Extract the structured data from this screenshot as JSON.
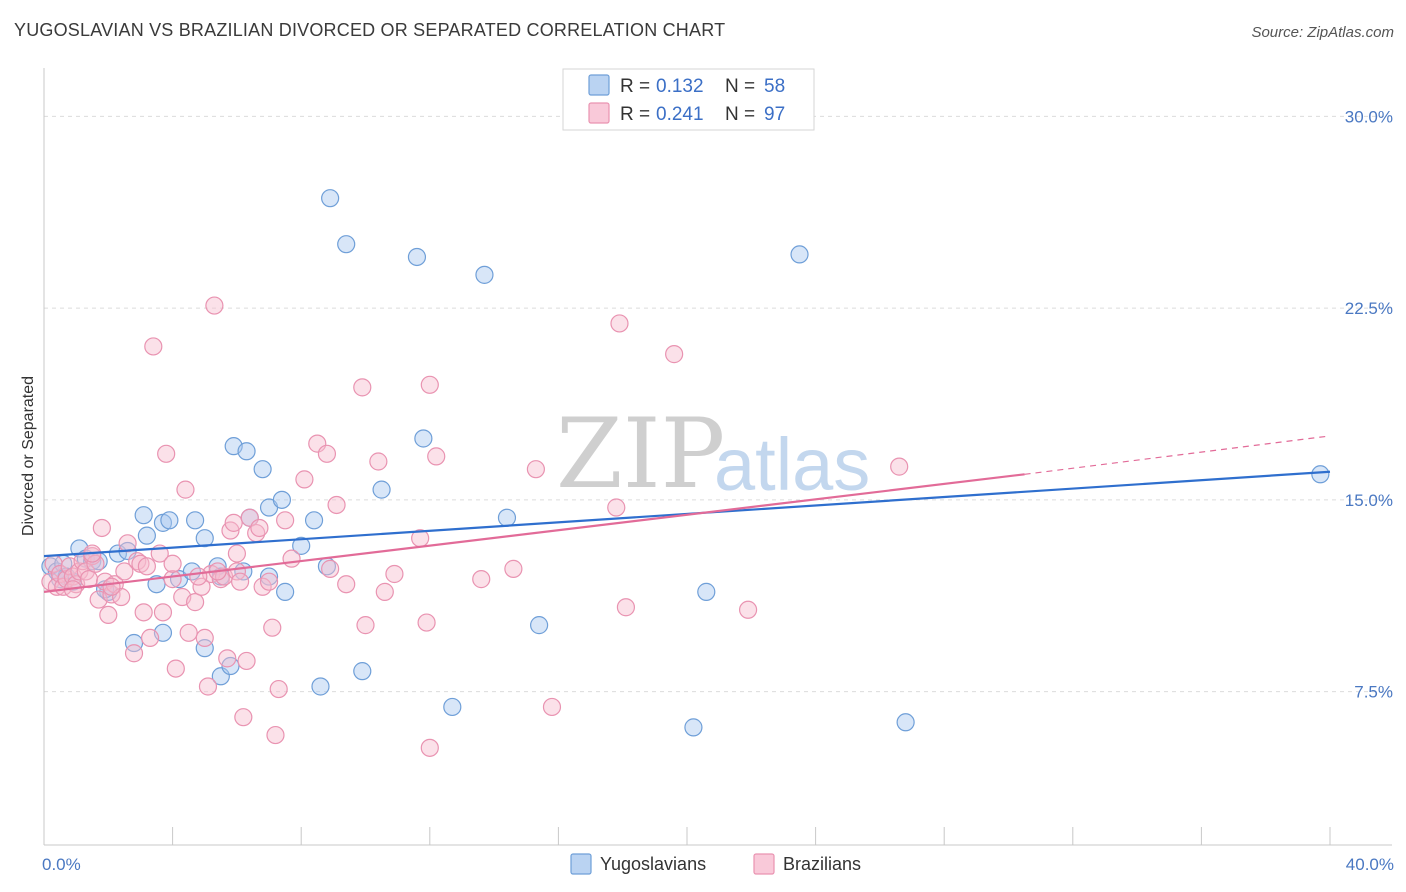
{
  "title": "YUGOSLAVIAN VS BRAZILIAN DIVORCED OR SEPARATED CORRELATION CHART",
  "source": "Source: ZipAtlas.com",
  "watermark": {
    "zip": "ZIP",
    "atlas": "atlas"
  },
  "legend": {
    "r_label": "R =",
    "n_label": "N =",
    "rows": [
      {
        "r": "0.132",
        "n": "58",
        "color": "#a9c8ef",
        "stroke": "#6f9fd8"
      },
      {
        "r": "0.241",
        "n": "97",
        "color": "#f7bccf",
        "stroke": "#e993b1"
      }
    ]
  },
  "bottom_legend": [
    "Yugoslavians",
    "Brazilians"
  ],
  "chart_data": {
    "type": "scatter",
    "xlabel": "",
    "ylabel": "Divorced or Separated",
    "xlim": [
      0,
      40
    ],
    "ylim": [
      1.5,
      31.5
    ],
    "x_tick_labels": [
      {
        "value": 0,
        "label": "0.0%"
      },
      {
        "value": 40,
        "label": "40.0%"
      }
    ],
    "y_tick_labels": [
      {
        "value": 7.5,
        "label": "7.5%"
      },
      {
        "value": 15.0,
        "label": "15.0%"
      },
      {
        "value": 22.5,
        "label": "22.5%"
      },
      {
        "value": 30.0,
        "label": "30.0%"
      }
    ],
    "series": [
      {
        "name": "Yugoslavians",
        "color": "#a9c8ef",
        "stroke": "#6f9fd8",
        "line_color": "#2f6fce",
        "trend": {
          "x0": 0,
          "y0": 12.8,
          "x1": 40,
          "y1": 16.1
        },
        "points": [
          [
            0.2,
            12.4
          ],
          [
            0.4,
            12.2
          ],
          [
            0.6,
            12.5
          ],
          [
            0.7,
            12.0
          ],
          [
            0.9,
            11.8
          ],
          [
            1.1,
            13.1
          ],
          [
            1.3,
            12.7
          ],
          [
            1.5,
            12.6
          ],
          [
            1.7,
            12.6
          ],
          [
            2.0,
            11.4
          ],
          [
            2.3,
            12.9
          ],
          [
            2.6,
            13.0
          ],
          [
            3.1,
            14.4
          ],
          [
            3.2,
            13.6
          ],
          [
            3.5,
            11.7
          ],
          [
            3.7,
            14.1
          ],
          [
            3.9,
            14.2
          ],
          [
            4.2,
            11.9
          ],
          [
            4.6,
            12.2
          ],
          [
            4.7,
            14.2
          ],
          [
            5.0,
            13.5
          ],
          [
            5.4,
            12.4
          ],
          [
            5.5,
            12.0
          ],
          [
            5.9,
            17.1
          ],
          [
            6.2,
            12.2
          ],
          [
            6.3,
            16.9
          ],
          [
            6.4,
            14.3
          ],
          [
            6.8,
            16.2
          ],
          [
            7.0,
            14.7
          ],
          [
            7.0,
            12.0
          ],
          [
            7.4,
            15.0
          ],
          [
            7.5,
            11.4
          ],
          [
            8.0,
            13.2
          ],
          [
            8.4,
            14.2
          ],
          [
            8.8,
            12.4
          ],
          [
            8.9,
            26.8
          ],
          [
            9.4,
            25.0
          ],
          [
            9.9,
            8.3
          ],
          [
            10.5,
            15.4
          ],
          [
            11.6,
            24.5
          ],
          [
            11.8,
            17.4
          ],
          [
            12.7,
            6.9
          ],
          [
            13.7,
            23.8
          ],
          [
            14.4,
            14.3
          ],
          [
            15.4,
            10.1
          ],
          [
            20.2,
            6.1
          ],
          [
            20.6,
            11.4
          ],
          [
            23.5,
            24.6
          ],
          [
            26.8,
            6.3
          ],
          [
            39.7,
            16.0
          ],
          [
            3.7,
            9.8
          ],
          [
            5.0,
            9.2
          ],
          [
            2.8,
            9.4
          ],
          [
            5.5,
            8.1
          ],
          [
            5.8,
            8.5
          ],
          [
            8.6,
            7.7
          ],
          [
            1.9,
            11.5
          ],
          [
            0.5,
            11.9
          ]
        ]
      },
      {
        "name": "Brazilians",
        "color": "#f7bccf",
        "stroke": "#e993b1",
        "line_color": "#e26b98",
        "trend": {
          "x0": 0,
          "y0": 11.4,
          "x1": 30.5,
          "y1": 16.0
        },
        "trend_dash": {
          "x0": 30.5,
          "y0": 16.0,
          "x1": 40,
          "y1": 17.5
        },
        "points": [
          [
            0.2,
            11.8
          ],
          [
            0.3,
            12.5
          ],
          [
            0.4,
            11.6
          ],
          [
            0.5,
            12.1
          ],
          [
            0.6,
            11.6
          ],
          [
            0.7,
            11.9
          ],
          [
            0.8,
            12.4
          ],
          [
            0.9,
            12.0
          ],
          [
            1.0,
            11.7
          ],
          [
            1.1,
            12.2
          ],
          [
            1.2,
            12.6
          ],
          [
            1.3,
            12.2
          ],
          [
            1.4,
            11.9
          ],
          [
            1.5,
            12.8
          ],
          [
            1.6,
            12.5
          ],
          [
            1.7,
            11.1
          ],
          [
            1.9,
            11.8
          ],
          [
            2.0,
            10.5
          ],
          [
            2.1,
            11.3
          ],
          [
            2.2,
            11.7
          ],
          [
            2.4,
            11.2
          ],
          [
            2.6,
            13.3
          ],
          [
            2.8,
            9.0
          ],
          [
            2.9,
            12.6
          ],
          [
            3.0,
            12.5
          ],
          [
            3.1,
            10.6
          ],
          [
            3.3,
            9.6
          ],
          [
            3.4,
            21.0
          ],
          [
            3.6,
            12.9
          ],
          [
            3.7,
            10.6
          ],
          [
            3.8,
            16.8
          ],
          [
            4.0,
            11.9
          ],
          [
            4.1,
            8.4
          ],
          [
            4.3,
            11.2
          ],
          [
            4.4,
            15.4
          ],
          [
            4.5,
            9.8
          ],
          [
            4.7,
            11.0
          ],
          [
            4.9,
            11.6
          ],
          [
            5.0,
            9.6
          ],
          [
            5.1,
            7.7
          ],
          [
            5.2,
            12.1
          ],
          [
            5.3,
            22.6
          ],
          [
            5.5,
            11.9
          ],
          [
            5.6,
            12.0
          ],
          [
            5.7,
            8.8
          ],
          [
            5.8,
            13.8
          ],
          [
            5.9,
            14.1
          ],
          [
            6.0,
            12.2
          ],
          [
            6.1,
            11.8
          ],
          [
            6.2,
            6.5
          ],
          [
            6.3,
            8.7
          ],
          [
            6.4,
            14.3
          ],
          [
            6.6,
            13.7
          ],
          [
            6.8,
            11.6
          ],
          [
            7.0,
            11.8
          ],
          [
            7.1,
            10.0
          ],
          [
            7.2,
            5.8
          ],
          [
            7.3,
            7.6
          ],
          [
            7.5,
            14.2
          ],
          [
            7.7,
            12.7
          ],
          [
            8.1,
            15.8
          ],
          [
            8.5,
            17.2
          ],
          [
            8.9,
            12.3
          ],
          [
            8.8,
            16.8
          ],
          [
            9.1,
            14.8
          ],
          [
            9.4,
            11.7
          ],
          [
            9.9,
            19.4
          ],
          [
            10.0,
            10.1
          ],
          [
            10.4,
            16.5
          ],
          [
            10.6,
            11.4
          ],
          [
            10.9,
            12.1
          ],
          [
            11.7,
            13.5
          ],
          [
            11.9,
            10.2
          ],
          [
            12.0,
            19.5
          ],
          [
            12.2,
            16.7
          ],
          [
            12.0,
            5.3
          ],
          [
            13.6,
            11.9
          ],
          [
            14.6,
            12.3
          ],
          [
            15.3,
            16.2
          ],
          [
            15.8,
            6.9
          ],
          [
            17.8,
            14.7
          ],
          [
            18.1,
            10.8
          ],
          [
            17.9,
            21.9
          ],
          [
            19.6,
            20.7
          ],
          [
            21.9,
            10.7
          ],
          [
            26.6,
            16.3
          ],
          [
            1.8,
            13.9
          ],
          [
            2.5,
            12.2
          ],
          [
            4.0,
            12.5
          ],
          [
            6.7,
            13.9
          ],
          [
            5.4,
            12.2
          ],
          [
            6.0,
            12.9
          ],
          [
            2.1,
            11.6
          ],
          [
            0.9,
            11.5
          ],
          [
            1.5,
            12.9
          ],
          [
            4.8,
            12.0
          ],
          [
            3.2,
            12.4
          ]
        ]
      }
    ]
  }
}
